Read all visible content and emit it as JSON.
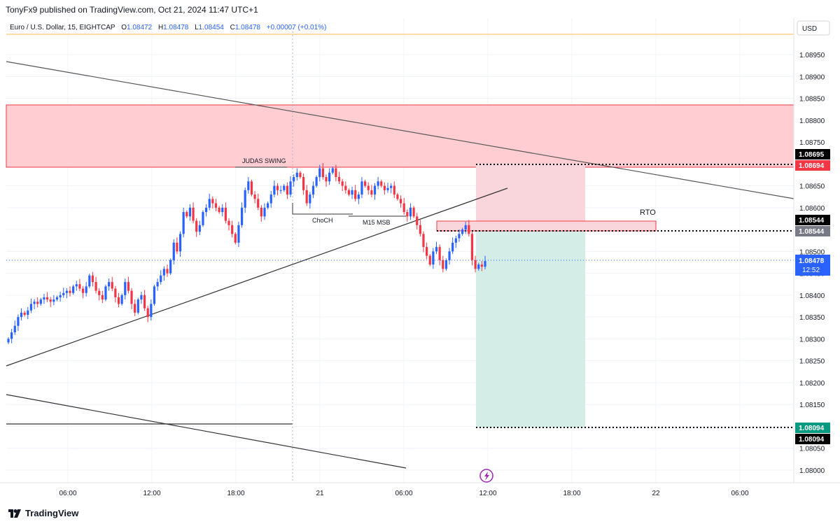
{
  "header": {
    "publisher": "TonyFx9 published on TradingView.com, Oct 21, 2024 11:47 UTC+1"
  },
  "legend": {
    "symbol": "Euro / U.S. Dollar, 15, EIGHTCAP",
    "o_label": "O",
    "o_value": "1.08472",
    "h_label": "H",
    "h_value": "1.08478",
    "l_label": "L",
    "l_value": "1.08454",
    "c_label": "C",
    "c_value": "1.08478",
    "change": "+0.00007 (+0.01%)"
  },
  "currency": "USD",
  "annotations": {
    "judas": "JUDAS SWING",
    "choch": "ChoCH",
    "msb": "M15 MSB",
    "rto": "RTO"
  },
  "price_labels": {
    "p1": "1.08695",
    "p2": "1.08694",
    "p3": "1.08544",
    "p4": "1.08544",
    "last_price": "1.08478",
    "countdown": "12:52",
    "p5": "1.08094",
    "p6": "1.08094"
  },
  "footer": {
    "brand": "TradingView"
  },
  "colors": {
    "up": "#2962ff",
    "down": "#f23645",
    "supply_zone": "#ffcdd2",
    "target_zone": "#d4ede6",
    "stop_zone": "#f9d6dc"
  },
  "chart_data": {
    "type": "candlestick",
    "symbol": "EURUSD",
    "timeframe": "15",
    "x_ticks": [
      "06:00",
      "12:00",
      "18:00",
      "21",
      "06:00",
      "12:00",
      "18:00",
      "22",
      "06:00"
    ],
    "y_ticks": [
      "1.08950",
      "1.08900",
      "1.08850",
      "1.08800",
      "1.08750",
      "1.08700",
      "1.08650",
      "1.08600",
      "1.08550",
      "1.08500",
      "1.08450",
      "1.08400",
      "1.08350",
      "1.08300",
      "1.08250",
      "1.08200",
      "1.08150",
      "1.08100",
      "1.08050",
      "1.08000"
    ],
    "ylim": [
      1.07975,
      1.0899
    ],
    "zones": {
      "supply": [
        1.0869,
        1.0883
      ],
      "rto": [
        1.08544,
        1.08555
      ],
      "stop": [
        1.08544,
        1.08694
      ],
      "target": [
        1.08094,
        1.08544
      ]
    },
    "closes": [
      1.083,
      1.08315,
      1.0833,
      1.0835,
      1.0836,
      1.08355,
      1.08365,
      1.0838,
      1.08385,
      1.0838,
      1.0839,
      1.08395,
      1.0839,
      1.08385,
      1.0839,
      1.08395,
      1.084,
      1.08405,
      1.0841,
      1.08405,
      1.0842,
      1.08425,
      1.08415,
      1.08405,
      1.0842,
      1.08445,
      1.0843,
      1.0841,
      1.084,
      1.0839,
      1.0842,
      1.0843,
      1.08415,
      1.08395,
      1.0838,
      1.084,
      1.0843,
      1.0841,
      1.0838,
      1.0836,
      1.0839,
      1.084,
      1.0837,
      1.0835,
      1.0838,
      1.0842,
      1.0843,
      1.08445,
      1.0846,
      1.0845,
      1.0848,
      1.0852,
      1.085,
      1.0854,
      1.0859,
      1.0858,
      1.086,
      1.0857,
      1.08545,
      1.0856,
      1.0859,
      1.086,
      1.0862,
      1.0861,
      1.086,
      1.0859,
      1.086,
      1.0857,
      1.0856,
      1.0854,
      1.0852,
      1.0856,
      1.086,
      1.0864,
      1.0866,
      1.0863,
      1.0862,
      1.086,
      1.0858,
      1.086,
      1.0861,
      1.0863,
      1.0865,
      1.0864,
      1.0864,
      1.0865,
      1.0863,
      1.0866,
      1.0867,
      1.0868,
      1.0867,
      1.0864,
      1.0861,
      1.0863,
      1.0865,
      1.0867,
      1.0869,
      1.0867,
      1.0866,
      1.0868,
      1.0869,
      1.0867,
      1.0866,
      1.0865,
      1.0864,
      1.0863,
      1.0864,
      1.0862,
      1.0863,
      1.0866,
      1.0865,
      1.0864,
      1.0863,
      1.0865,
      1.0866,
      1.0865,
      1.0864,
      1.08645,
      1.0865,
      1.0863,
      1.0862,
      1.0861,
      1.0859,
      1.0858,
      1.086,
      1.0858,
      1.0856,
      1.0854,
      1.0851,
      1.0849,
      1.0847,
      1.085,
      1.0851,
      1.0848,
      1.0846,
      1.0848,
      1.085,
      1.0852,
      1.0853,
      1.0854,
      1.0855,
      1.0856,
      1.0854,
      1.0848,
      1.0846,
      1.0847,
      1.08465,
      1.08478
    ]
  }
}
